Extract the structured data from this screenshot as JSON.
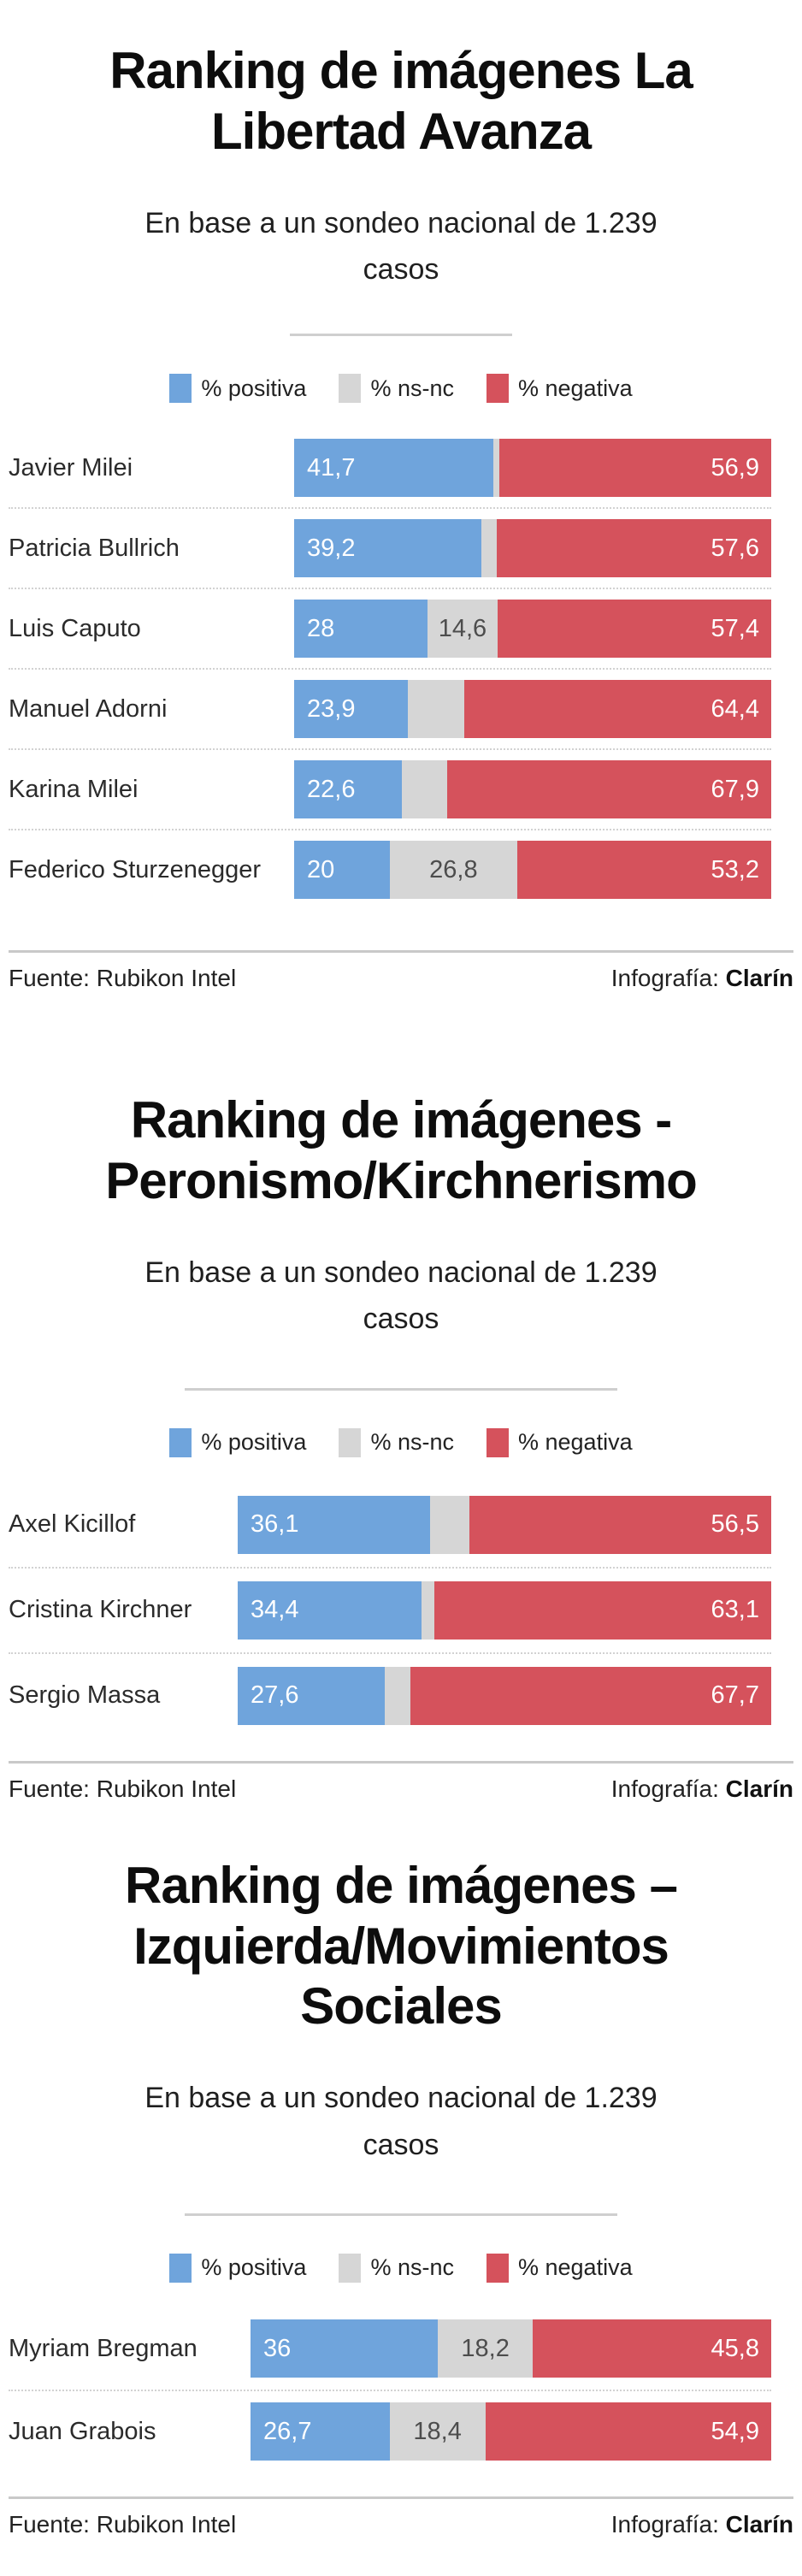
{
  "colors": {
    "positiva": "#6FA4DC",
    "nsnc": "#D6D6D6",
    "negativa": "#D5525C"
  },
  "chart_data": [
    {
      "type": "bar",
      "stacked": true,
      "orientation": "horizontal",
      "xlim": [
        0,
        100
      ],
      "unit": "%",
      "title": "Ranking de imágenes La Libertad Avanza",
      "title_lines": [
        "Ranking de imágenes La",
        "Libertad Avanza"
      ],
      "subtitle": "En base a un sondeo nacional de 1.239 casos",
      "subtitle_lines": [
        "En base a un sondeo nacional de 1.239",
        "casos"
      ],
      "legend": [
        {
          "label": "% positiva"
        },
        {
          "label": "% ns-nc"
        },
        {
          "label": "% negativa"
        }
      ],
      "rows": [
        {
          "name": "Javier Milei",
          "positiva": 41.7,
          "nsnc": 1.4,
          "negativa": 56.9,
          "labels": {
            "pos": "41,7",
            "ns": "",
            "neg": "56,9"
          }
        },
        {
          "name": "Patricia Bullrich",
          "positiva": 39.2,
          "nsnc": 3.2,
          "negativa": 57.6,
          "labels": {
            "pos": "39,2",
            "ns": "",
            "neg": "57,6"
          }
        },
        {
          "name": "Luis Caputo",
          "positiva": 28,
          "nsnc": 14.6,
          "negativa": 57.4,
          "labels": {
            "pos": "28",
            "ns": "14,6",
            "neg": "57,4"
          }
        },
        {
          "name": "Manuel Adorni",
          "positiva": 23.9,
          "nsnc": 11.7,
          "negativa": 64.4,
          "labels": {
            "pos": "23,9",
            "ns": "",
            "neg": "64,4"
          }
        },
        {
          "name": "Karina Milei",
          "positiva": 22.6,
          "nsnc": 9.5,
          "negativa": 67.9,
          "labels": {
            "pos": "22,6",
            "ns": "",
            "neg": "67,9"
          }
        },
        {
          "name": "Federico Sturzenegger",
          "positiva": 20,
          "nsnc": 26.8,
          "negativa": 53.2,
          "labels": {
            "pos": "20",
            "ns": "26,8",
            "neg": "53,2"
          }
        }
      ],
      "source": "Fuente: Rubikon Intel",
      "credit_label": "Infografía:",
      "credit_brand": "Clarín"
    },
    {
      "type": "bar",
      "stacked": true,
      "orientation": "horizontal",
      "xlim": [
        0,
        100
      ],
      "unit": "%",
      "title": "Ranking de imágenes - Peronismo/Kirchnerismo",
      "title_lines": [
        "Ranking de imágenes -",
        "Peronismo/Kirchnerismo"
      ],
      "subtitle": "En base a un sondeo nacional de 1.239 casos",
      "subtitle_lines": [
        "En base a un sondeo nacional de 1.239",
        "casos"
      ],
      "legend": [
        {
          "label": "% positiva"
        },
        {
          "label": "% ns-nc"
        },
        {
          "label": "% negativa"
        }
      ],
      "rows": [
        {
          "name": "Axel Kicillof",
          "positiva": 36.1,
          "nsnc": 7.4,
          "negativa": 56.5,
          "labels": {
            "pos": "36,1",
            "ns": "",
            "neg": "56,5"
          }
        },
        {
          "name": "Cristina Kirchner",
          "positiva": 34.4,
          "nsnc": 2.5,
          "negativa": 63.1,
          "labels": {
            "pos": "34,4",
            "ns": "",
            "neg": "63,1"
          }
        },
        {
          "name": "Sergio Massa",
          "positiva": 27.6,
          "nsnc": 4.7,
          "negativa": 67.7,
          "labels": {
            "pos": "27,6",
            "ns": "",
            "neg": "67,7"
          }
        }
      ],
      "source": "Fuente: Rubikon Intel",
      "credit_label": "Infografía:",
      "credit_brand": "Clarín"
    },
    {
      "type": "bar",
      "stacked": true,
      "orientation": "horizontal",
      "xlim": [
        0,
        100
      ],
      "unit": "%",
      "title": "Ranking de imágenes – Izquierda/Movimientos Sociales",
      "title_lines": [
        "Ranking de imágenes –",
        "Izquierda/Movimientos",
        "Sociales"
      ],
      "subtitle": "En base a un sondeo nacional de 1.239 casos",
      "subtitle_lines": [
        "En base a un sondeo nacional de 1.239",
        "casos"
      ],
      "legend": [
        {
          "label": "% positiva"
        },
        {
          "label": "% ns-nc"
        },
        {
          "label": "% negativa"
        }
      ],
      "rows": [
        {
          "name": "Myriam Bregman",
          "positiva": 36,
          "nsnc": 18.2,
          "negativa": 45.8,
          "labels": {
            "pos": "36",
            "ns": "18,2",
            "neg": "45,8"
          }
        },
        {
          "name": "Juan Grabois",
          "positiva": 26.7,
          "nsnc": 18.4,
          "negativa": 54.9,
          "labels": {
            "pos": "26,7",
            "ns": "18,4",
            "neg": "54,9"
          }
        }
      ],
      "source": "Fuente: Rubikon Intel",
      "credit_label": "Infografía:",
      "credit_brand": "Clarín"
    }
  ]
}
